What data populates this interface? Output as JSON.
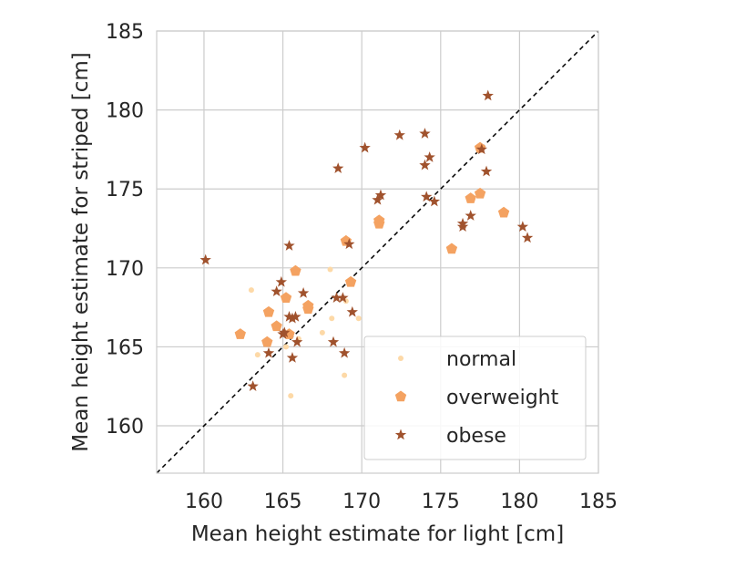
{
  "chart_data": {
    "type": "scatter",
    "xlabel": "Mean height estimate for light [cm]",
    "ylabel": "Mean height estimate for striped [cm]",
    "xlim": [
      157,
      185
    ],
    "ylim": [
      157,
      185
    ],
    "xticks": [
      "160",
      "165",
      "170",
      "175",
      "180",
      "185"
    ],
    "yticks": [
      "160",
      "165",
      "170",
      "175",
      "180",
      "185"
    ],
    "grid": true,
    "reference_line": "y = x (dashed)",
    "legend_position": "lower-right",
    "series": [
      {
        "name": "normal",
        "marker": "circle",
        "color": "#fdd9a7",
        "points": [
          [
            163.0,
            168.6
          ],
          [
            163.4,
            164.5
          ],
          [
            165.5,
            161.9
          ],
          [
            167.5,
            165.9
          ],
          [
            168.0,
            169.9
          ],
          [
            168.1,
            166.8
          ],
          [
            168.9,
            163.2
          ],
          [
            169.0,
            167.9
          ],
          [
            169.8,
            166.8
          ],
          [
            165.2,
            165.0
          ],
          [
            166.0,
            165.5
          ]
        ]
      },
      {
        "name": "overweight",
        "marker": "pentagon",
        "color": "#f4a261",
        "points": [
          [
            162.3,
            165.8
          ],
          [
            164.1,
            167.2
          ],
          [
            164.0,
            165.3
          ],
          [
            164.6,
            166.3
          ],
          [
            165.2,
            168.1
          ],
          [
            165.8,
            169.8
          ],
          [
            166.6,
            167.6
          ],
          [
            166.6,
            167.4
          ],
          [
            169.0,
            171.7
          ],
          [
            169.3,
            169.1
          ],
          [
            171.1,
            173.0
          ],
          [
            171.1,
            172.8
          ],
          [
            175.7,
            171.2
          ],
          [
            176.9,
            174.4
          ],
          [
            177.5,
            174.7
          ],
          [
            177.5,
            177.6
          ],
          [
            179.0,
            173.5
          ],
          [
            165.4,
            165.8
          ]
        ]
      },
      {
        "name": "obese",
        "marker": "star",
        "color": "#a0522d",
        "points": [
          [
            160.1,
            170.5
          ],
          [
            163.1,
            162.5
          ],
          [
            164.1,
            164.6
          ],
          [
            164.6,
            168.5
          ],
          [
            164.9,
            169.1
          ],
          [
            165.1,
            165.9
          ],
          [
            165.4,
            171.4
          ],
          [
            165.4,
            166.9
          ],
          [
            165.6,
            166.8
          ],
          [
            165.8,
            166.9
          ],
          [
            165.6,
            164.3
          ],
          [
            165.9,
            165.3
          ],
          [
            166.3,
            168.4
          ],
          [
            168.2,
            165.3
          ],
          [
            168.4,
            168.1
          ],
          [
            168.5,
            176.3
          ],
          [
            168.8,
            168.1
          ],
          [
            168.9,
            164.6
          ],
          [
            169.2,
            171.5
          ],
          [
            169.4,
            167.2
          ],
          [
            170.2,
            177.6
          ],
          [
            171.0,
            174.3
          ],
          [
            171.2,
            174.6
          ],
          [
            172.4,
            178.4
          ],
          [
            174.0,
            178.5
          ],
          [
            174.0,
            176.5
          ],
          [
            174.1,
            174.5
          ],
          [
            174.3,
            177.0
          ],
          [
            174.6,
            174.2
          ],
          [
            176.4,
            172.8
          ],
          [
            176.4,
            172.6
          ],
          [
            176.9,
            173.3
          ],
          [
            177.6,
            177.5
          ],
          [
            177.9,
            176.1
          ],
          [
            178.0,
            180.9
          ],
          [
            180.2,
            172.6
          ],
          [
            180.5,
            171.9
          ],
          [
            165.0,
            165.8
          ]
        ]
      }
    ]
  }
}
